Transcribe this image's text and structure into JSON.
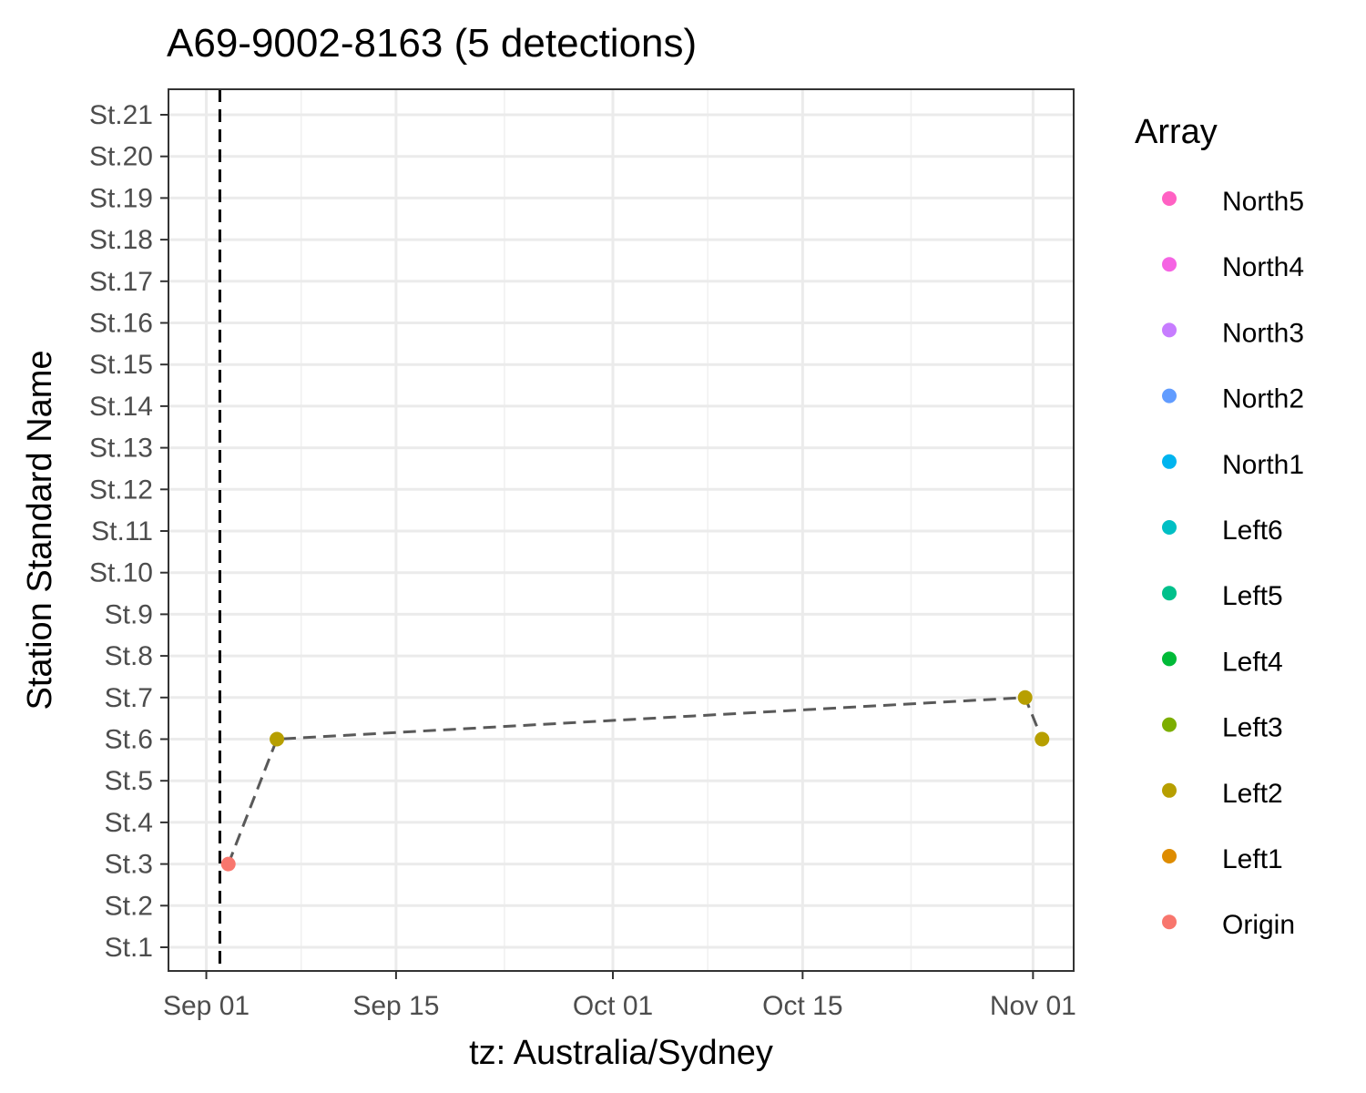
{
  "chart_data": {
    "type": "scatter",
    "title": "A69-9002-8163 (5 detections)",
    "xlabel": "tz: Australia/Sydney",
    "ylabel": "Station Standard Name",
    "x_ticks": [
      {
        "date": "2016-09-01",
        "label": "Sep 01"
      },
      {
        "date": "2016-09-15",
        "label": "Sep 15"
      },
      {
        "date": "2016-10-01",
        "label": "Oct 01"
      },
      {
        "date": "2016-10-15",
        "label": "Oct 15"
      },
      {
        "date": "2016-11-01",
        "label": "Nov 01"
      }
    ],
    "x_minor_ticks": [
      "2016-09-08",
      "2016-09-23",
      "2016-10-08",
      "2016-10-23"
    ],
    "xlim": [
      "2016-08-29T05:00",
      "2016-11-04T00:00"
    ],
    "y_categories": [
      "St.1",
      "St.2",
      "St.3",
      "St.4",
      "St.5",
      "St.6",
      "St.7",
      "St.8",
      "St.9",
      "St.10",
      "St.11",
      "St.12",
      "St.13",
      "St.14",
      "St.15",
      "St.16",
      "St.17",
      "St.18",
      "St.19",
      "St.20",
      "St.21"
    ],
    "vline": {
      "date": "2016-09-02T00:00",
      "style": "dashed",
      "color": "#000000"
    },
    "points": [
      {
        "date": "2016-09-02T15:00",
        "station": "St.3",
        "array": "Origin"
      },
      {
        "date": "2016-09-06T05:00",
        "station": "St.6",
        "array": "Left2"
      },
      {
        "date": "2016-10-31T10:00",
        "station": "St.7",
        "array": "Left2"
      },
      {
        "date": "2016-11-01T16:00",
        "station": "St.6",
        "array": "Left2"
      }
    ],
    "path_style": {
      "color": "#595959",
      "dash": "dashed"
    },
    "legend": {
      "title": "Array",
      "placement": "right",
      "entries": [
        {
          "label": "North5",
          "color": "#FF61C3"
        },
        {
          "label": "North4",
          "color": "#F564E3"
        },
        {
          "label": "North3",
          "color": "#C77CFF"
        },
        {
          "label": "North2",
          "color": "#619CFF"
        },
        {
          "label": "North1",
          "color": "#00B4EF"
        },
        {
          "label": "Left6",
          "color": "#00BFC4"
        },
        {
          "label": "Left5",
          "color": "#00C08B"
        },
        {
          "label": "Left4",
          "color": "#00BA38"
        },
        {
          "label": "Left3",
          "color": "#7CAE00"
        },
        {
          "label": "Left2",
          "color": "#B79F00"
        },
        {
          "label": "Left1",
          "color": "#DE8C00"
        },
        {
          "label": "Origin",
          "color": "#F8766D"
        }
      ]
    },
    "grid": true
  }
}
